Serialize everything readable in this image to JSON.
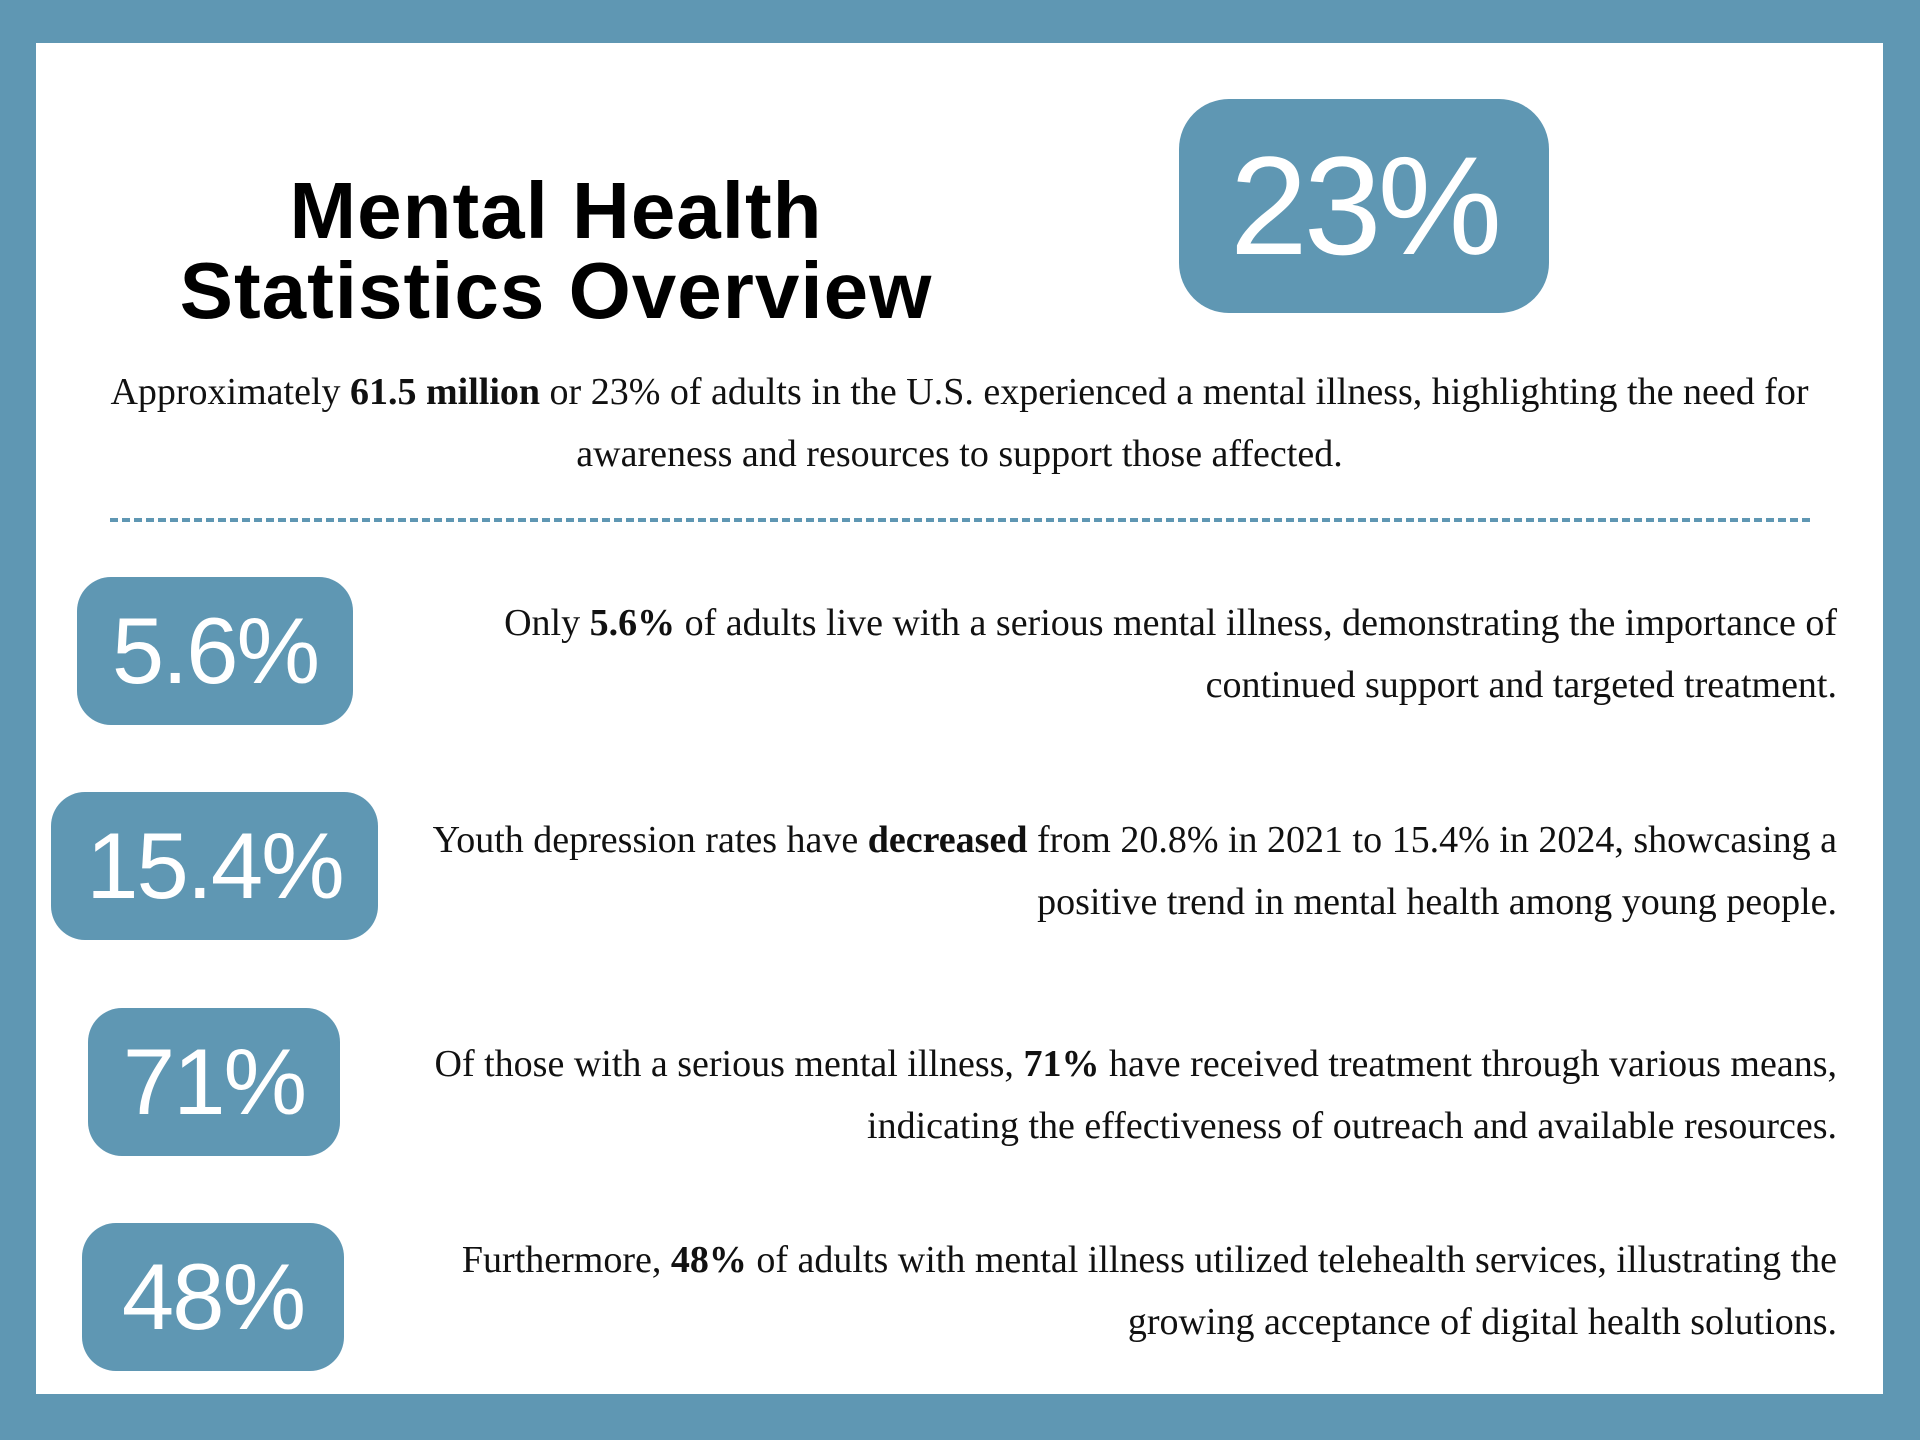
{
  "title": {
    "line1": "Mental Health",
    "line2": "Statistics Overview"
  },
  "headline_stat": "23%",
  "intro": {
    "pre": "Approximately ",
    "bold": "61.5 million",
    "post": " or 23% of adults in the U.S. experienced a mental illness, highlighting the need for awareness and resources to support those affected."
  },
  "stats": [
    {
      "value": "5.6%",
      "pre": "Only ",
      "bold": "5.6%",
      "post": " of adults live with a serious mental illness, demonstrating the importance of continued support and targeted treatment."
    },
    {
      "value": "15.4%",
      "pre": "Youth depression rates have ",
      "bold": "decreased",
      "post": " from 20.8% in 2021 to 15.4% in 2024, showcasing a positive trend in mental health among young people."
    },
    {
      "value": "71%",
      "pre": "Of those with a serious mental illness, ",
      "bold": "71%",
      "post": " have received treatment through various means, indicating the effectiveness of outreach and available resources."
    },
    {
      "value": "48%",
      "pre": "Furthermore, ",
      "bold": "48%",
      "post": " of adults with mental illness utilized telehealth services, illustrating the growing acceptance of digital health solutions."
    }
  ],
  "colors": {
    "accent": "#5f97b3",
    "background": "#ffffff"
  }
}
